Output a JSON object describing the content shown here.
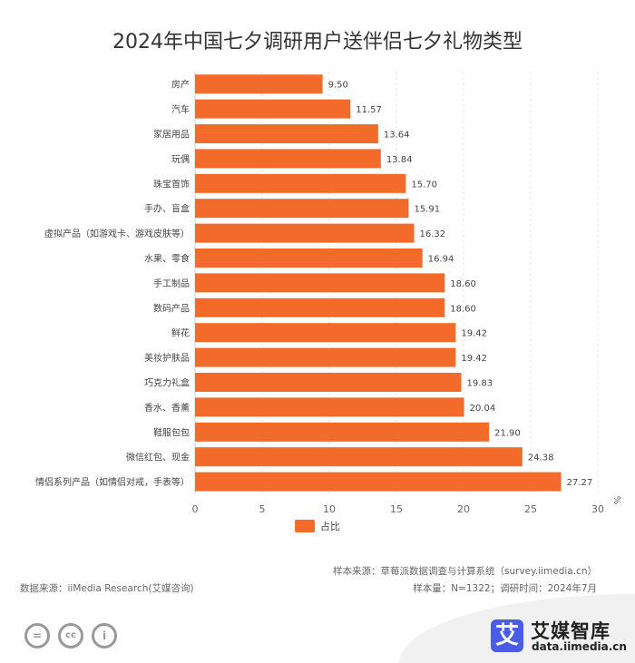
{
  "chart_data": {
    "type": "bar",
    "orientation": "horizontal",
    "title": "2024年中国七夕调研用户送伴侣七夕礼物类型",
    "categories": [
      "房产",
      "汽车",
      "家居用品",
      "玩偶",
      "珠宝首饰",
      "手办、盲盒",
      "虚拟产品（如游戏卡、游戏皮肤等）",
      "水果、零食",
      "手工制品",
      "数码产品",
      "鲜花",
      "美妆护肤品",
      "巧克力礼盒",
      "香水、香薰",
      "鞋服包包",
      "微信红包、现金",
      "情侣系列产品（如情侣对戒，手表等）"
    ],
    "series": [
      {
        "name": "占比",
        "values": [
          9.5,
          11.57,
          13.64,
          13.84,
          15.7,
          15.91,
          16.32,
          16.94,
          18.6,
          18.6,
          19.42,
          19.42,
          19.83,
          20.04,
          21.9,
          24.38,
          27.27
        ]
      }
    ],
    "xlim": [
      0,
      30
    ],
    "xticks": [
      "0",
      "5",
      "10",
      "15",
      "20",
      "25",
      "30"
    ],
    "xunit": "%",
    "grid": true,
    "legend": "bottom",
    "color": "#f26b2a"
  },
  "footer": {
    "sample_source": "样本来源：草莓派数据调查与计算系统（survey.iimedia.cn）",
    "data_source": "数据来源：iiMedia Research(艾媒咨询)",
    "sample_info": "样本量：N=1322；调研时间：2024年7月"
  },
  "logo": {
    "mark": "艾",
    "name": "艾媒智库",
    "url": "data.iimedia.cn"
  },
  "license_icons": [
    "cc-nd-icon",
    "cc-icon",
    "cc-by-icon"
  ]
}
